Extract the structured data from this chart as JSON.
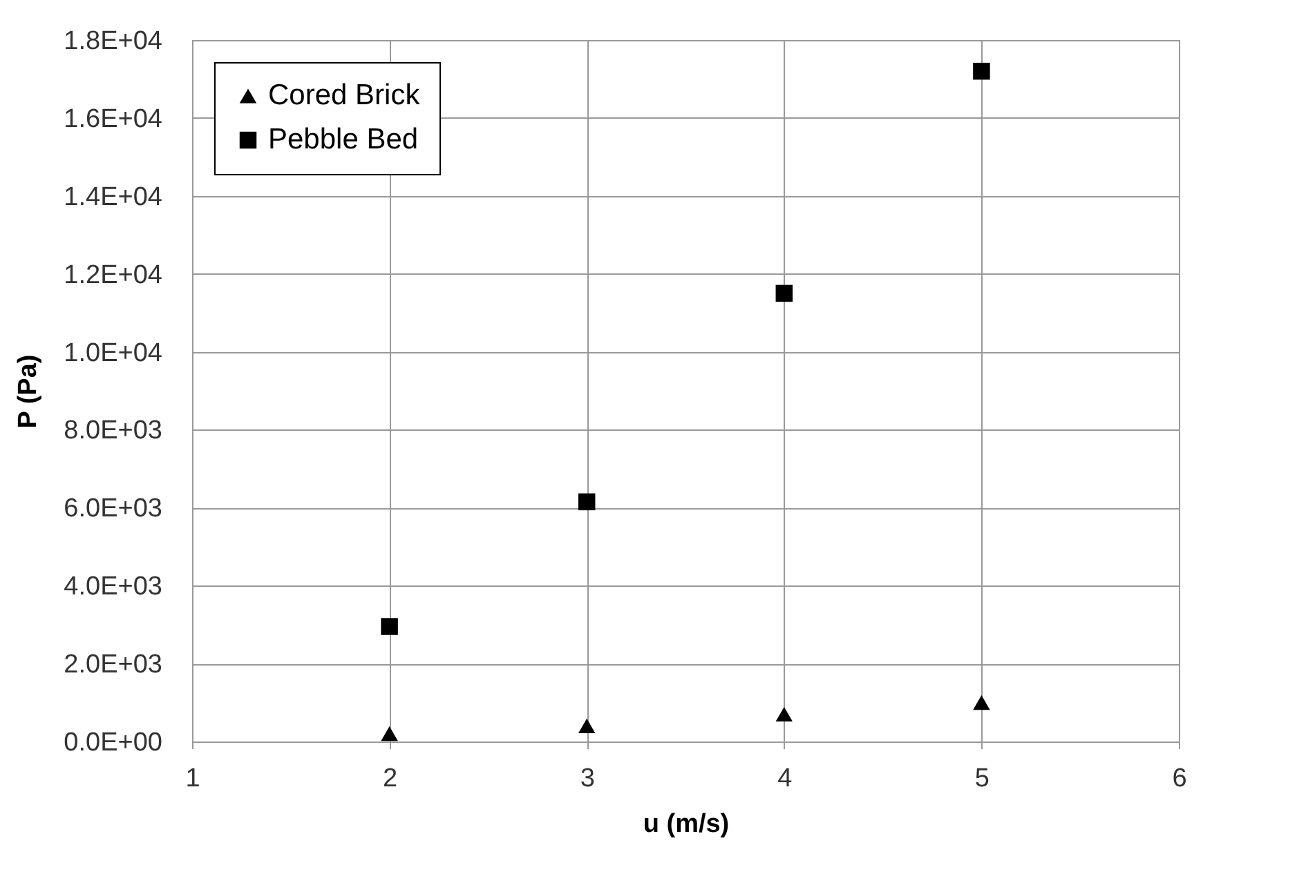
{
  "chart_data": {
    "type": "scatter",
    "xlabel": "u (m/s)",
    "ylabel": "P  (Pa)",
    "x": [
      2,
      3,
      4,
      5
    ],
    "series": [
      {
        "name": "Cored Brick",
        "color": "#000000",
        "marker": "triangle",
        "values": [
          200,
          400,
          700,
          1000
        ]
      },
      {
        "name": "Pebble Bed",
        "color": "#000000",
        "marker": "square",
        "values": [
          2950,
          6150,
          11500,
          17200
        ]
      }
    ],
    "xlim": [
      1,
      6
    ],
    "xticks": [
      1,
      2,
      3,
      4,
      5,
      6
    ],
    "ylim": [
      0,
      18000
    ],
    "yticks": [
      {
        "value": 0,
        "label": "0.0E+00"
      },
      {
        "value": 2000,
        "label": "2.0E+03"
      },
      {
        "value": 4000,
        "label": "4.0E+03"
      },
      {
        "value": 6000,
        "label": "6.0E+03"
      },
      {
        "value": 8000,
        "label": "8.0E+03"
      },
      {
        "value": 10000,
        "label": "1.0E+04"
      },
      {
        "value": 12000,
        "label": "1.2E+04"
      },
      {
        "value": 14000,
        "label": "1.4E+04"
      },
      {
        "value": 16000,
        "label": "1.6E+04"
      },
      {
        "value": 18000,
        "label": "1.8E+04"
      }
    ],
    "grid": true,
    "legend": "top left"
  }
}
